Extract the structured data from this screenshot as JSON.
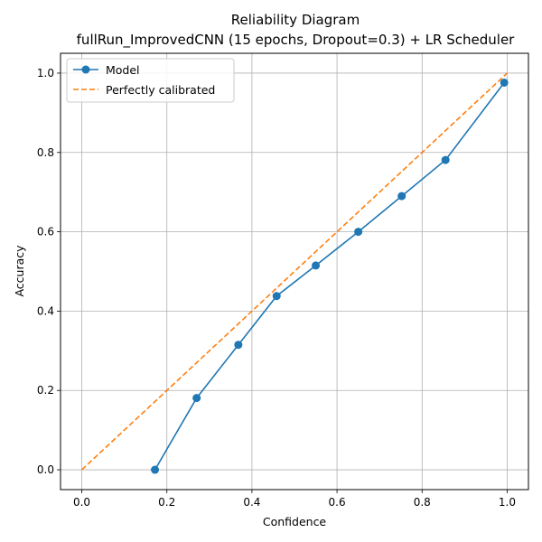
{
  "chart_data": {
    "type": "line",
    "title": "Reliability Diagram",
    "subtitle": "fullRun_ImprovedCNN (15 epochs, Dropout=0.3) + LR Scheduler",
    "xlabel": "Confidence",
    "ylabel": "Accuracy",
    "xlim": [
      -0.05,
      1.05
    ],
    "ylim": [
      -0.05,
      1.05
    ],
    "xticks": [
      0.0,
      0.2,
      0.4,
      0.6,
      0.8,
      1.0
    ],
    "yticks": [
      0.0,
      0.2,
      0.4,
      0.6,
      0.8,
      1.0
    ],
    "grid": true,
    "legend_position": "top-left",
    "series": [
      {
        "name": "Model",
        "style": "solid-with-markers",
        "color": "#1f77b4",
        "x": [
          0.172,
          0.27,
          0.368,
          0.458,
          0.55,
          0.65,
          0.752,
          0.855,
          0.993
        ],
        "y": [
          0.0,
          0.181,
          0.315,
          0.438,
          0.515,
          0.6,
          0.69,
          0.781,
          0.976
        ]
      },
      {
        "name": "Perfectly calibrated",
        "style": "dashed",
        "color": "#ff7f0e",
        "x": [
          0.0,
          1.0
        ],
        "y": [
          0.0,
          1.0
        ]
      }
    ]
  }
}
